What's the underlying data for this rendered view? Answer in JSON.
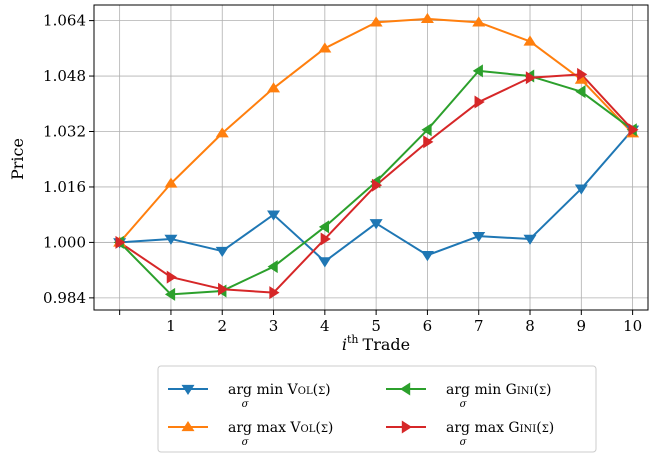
{
  "chart_data": {
    "type": "line",
    "xlabel": "Trade",
    "xlabel_prefix": "i",
    "xlabel_sup": "th",
    "ylabel": "Price",
    "x": [
      0,
      1,
      2,
      3,
      4,
      5,
      6,
      7,
      8,
      9,
      10
    ],
    "x_tick_labels": [
      "",
      "1",
      "2",
      "3",
      "4",
      "5",
      "6",
      "7",
      "8",
      "9",
      "10"
    ],
    "y_ticks": [
      "0.984",
      "1.000",
      "1.016",
      "1.032",
      "1.048",
      "1.064"
    ],
    "xlim": [
      -0.5,
      10.3
    ],
    "ylim": [
      0.9805,
      1.0685
    ],
    "grid": true,
    "legend_position": "bottom",
    "series": [
      {
        "name": "arg min Vol(σ)",
        "name_main": "arg min",
        "name_func": "Vol(σ)",
        "name_sub": "σ",
        "color": "#1f77b4",
        "marker": "triangle-down",
        "values": [
          1.0,
          1.001,
          0.9975,
          1.008,
          0.9945,
          1.0055,
          0.9963,
          1.0018,
          1.001,
          1.0155,
          1.0325
        ]
      },
      {
        "name": "arg max Vol(σ)",
        "name_main": "arg max",
        "name_func": "Vol(σ)",
        "name_sub": "σ",
        "color": "#ff7f0e",
        "marker": "triangle-up",
        "values": [
          1.0,
          1.017,
          1.0315,
          1.0445,
          1.056,
          1.0635,
          1.0645,
          1.0635,
          1.058,
          1.047,
          1.0315
        ]
      },
      {
        "name": "arg min Gini(σ)",
        "name_main": "arg min",
        "name_func": "Gini(σ)",
        "name_sub": "σ",
        "color": "#2ca02c",
        "marker": "triangle-left",
        "values": [
          1.0,
          0.985,
          0.986,
          0.993,
          1.0045,
          1.0175,
          1.0325,
          1.0495,
          1.048,
          1.0435,
          1.0325
        ]
      },
      {
        "name": "arg max Gini(σ)",
        "name_main": "arg max",
        "name_func": "Gini(σ)",
        "name_sub": "σ",
        "color": "#d62728",
        "marker": "triangle-right",
        "values": [
          1.0,
          0.99,
          0.9865,
          0.9855,
          1.001,
          1.0165,
          1.029,
          1.0405,
          1.0475,
          1.0485,
          1.0325
        ]
      }
    ]
  }
}
